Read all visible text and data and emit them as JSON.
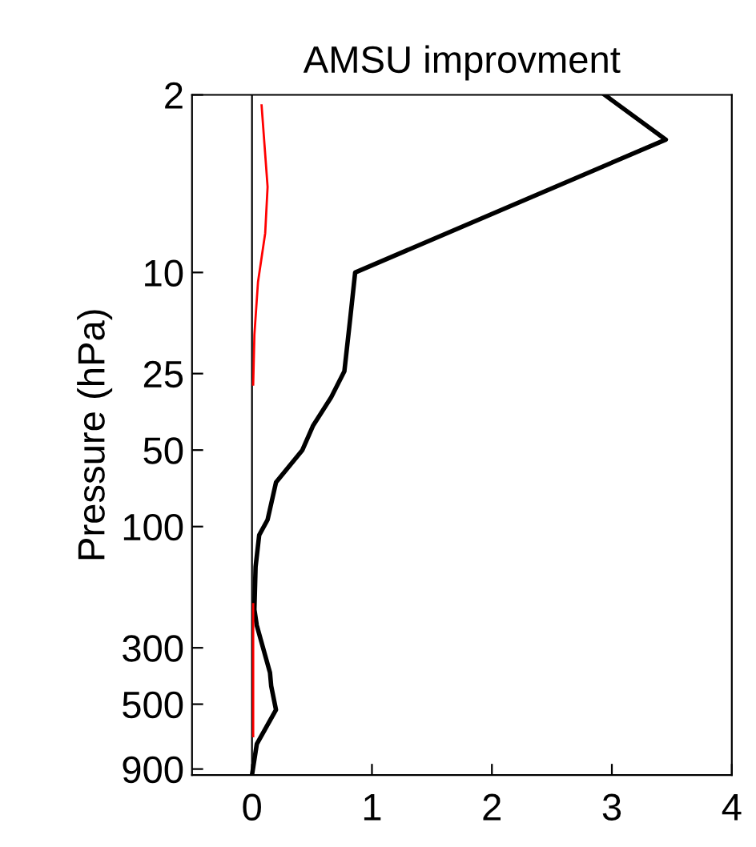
{
  "chart_data": {
    "type": "line",
    "title": "AMSU improvment",
    "ylabel": "Pressure (hPa)",
    "orientation": "horizontal",
    "log": "y",
    "grid": false,
    "marker": "none",
    "line_style": "solid",
    "xlim": [
      -0.5,
      4
    ],
    "xticks": [
      0,
      1,
      2,
      3,
      4
    ],
    "ylim": [
      950,
      2
    ],
    "yticks": [
      2,
      10,
      25,
      50,
      100,
      300,
      500,
      900
    ],
    "ref_lines": [
      {
        "axis": "x",
        "value": 0,
        "color": "#000000"
      }
    ],
    "series": [
      {
        "color": "#000000",
        "x": [
          2,
          3,
          10,
          15,
          24.5,
          31,
          40,
          50,
          67,
          94,
          108,
          144,
          212,
          245,
          376,
          424,
          526,
          718,
          950
        ],
        "values": [
          2.94,
          3.45,
          0.86,
          0.82,
          0.77,
          0.66,
          0.51,
          0.42,
          0.2,
          0.13,
          0.06,
          0.03,
          0.02,
          0.04,
          0.15,
          0.16,
          0.2,
          0.04,
          0.0
        ]
      },
      {
        "color": "#ff0000",
        "x": [
          2.2,
          4.6,
          7,
          10.9,
          17.6,
          27.6,
          100,
          202,
          669
        ],
        "values": [
          0.08,
          0.13,
          0.11,
          0.05,
          0.02,
          0.01,
          null,
          0.01,
          0.01
        ]
      }
    ]
  }
}
